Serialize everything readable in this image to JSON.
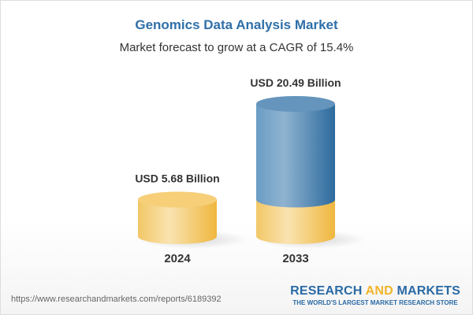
{
  "title": "Genomics Data Analysis Market",
  "subtitle": "Market forecast to grow at a CAGR of 15.4%",
  "footer": {
    "url": "https://www.researchandmarkets.com/reports/6189392",
    "logo_line1_a": "RESEARCH ",
    "logo_line1_b": "AND",
    "logo_line1_c": " MARKETS",
    "logo_line2": "THE WORLD'S LARGEST MARKET RESEARCH STORE"
  },
  "colors": {
    "base": "#f2c14e",
    "growth": "#3f7fb5",
    "title": "#2f6fa8"
  },
  "chart_data": {
    "type": "bar",
    "style": "3d-cylinder",
    "title": "Genomics Data Analysis Market",
    "subtitle": "Market forecast to grow at a CAGR of 15.4%",
    "categories": [
      "2024",
      "2033"
    ],
    "values": [
      5.68,
      20.49
    ],
    "data_labels": [
      "USD 5.68 Billion",
      "USD 20.49 Billion"
    ],
    "unit": "USD Billion",
    "grid": false
  }
}
